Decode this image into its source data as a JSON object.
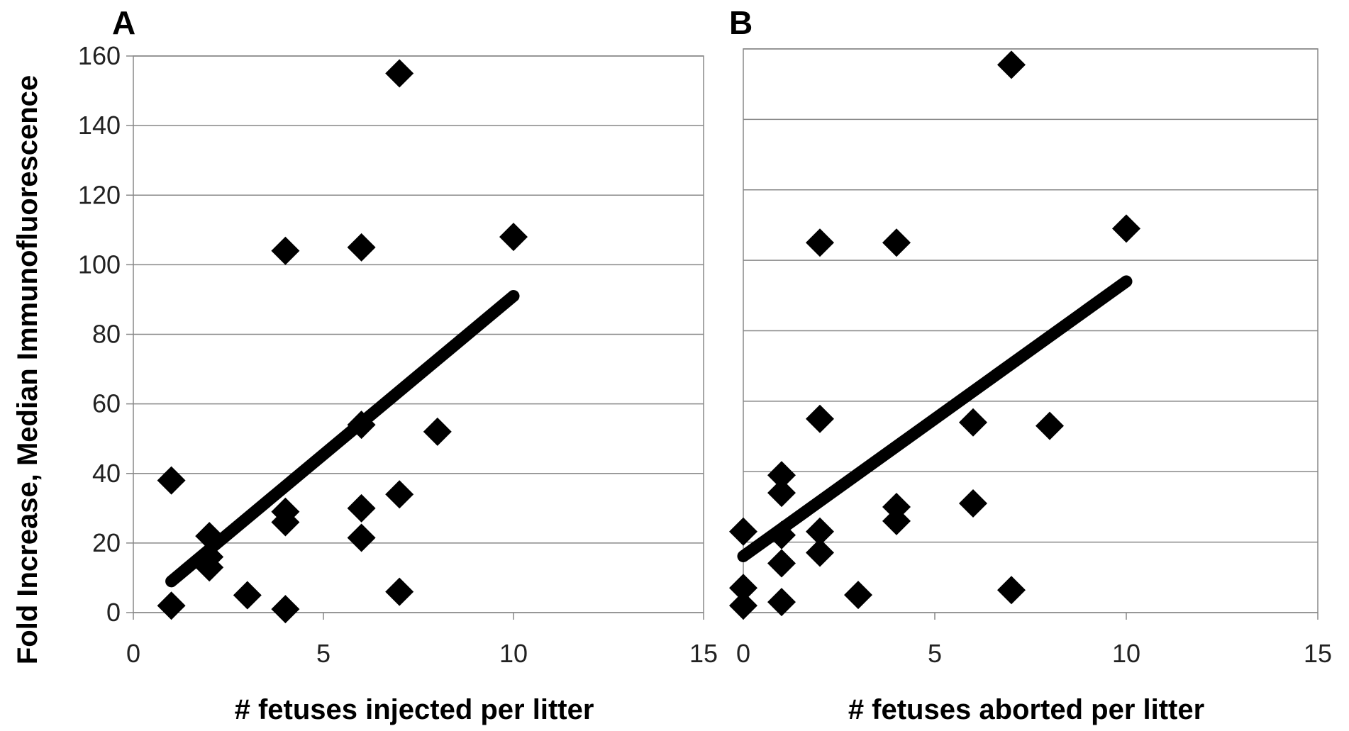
{
  "chart_data": [
    {
      "type": "scatter",
      "panel_label": "A",
      "x_label": "# fetuses injected per litter",
      "y_label": "Fold Increase, Median Immunofluorescence",
      "x": [
        1,
        1,
        2,
        2,
        2,
        3,
        4,
        4,
        4,
        4,
        6,
        6,
        6,
        6,
        7,
        7,
        7,
        8,
        10
      ],
      "values": [
        38,
        2,
        22,
        16,
        13,
        5,
        104,
        29,
        26,
        1,
        105,
        54,
        30,
        21.5,
        155,
        34,
        6,
        52,
        108
      ],
      "color": "#000000",
      "trendline": {
        "x": [
          1,
          10
        ],
        "y": [
          9,
          91
        ]
      },
      "xlim": [
        0,
        15
      ],
      "xticks": [
        0,
        5,
        10,
        15
      ],
      "ylim": [
        0,
        160
      ],
      "yticks": [
        0,
        20,
        40,
        60,
        80,
        100,
        120,
        140,
        160
      ],
      "ytick_labels": true,
      "grid": true
    },
    {
      "type": "scatter",
      "panel_label": "B",
      "x_label": "# fetuses aborted per litter",
      "x": [
        0,
        0,
        0,
        1,
        1,
        1,
        1,
        1,
        2,
        2,
        2,
        2,
        3,
        4,
        4,
        4,
        6,
        6,
        7,
        7,
        8,
        10
      ],
      "values": [
        23,
        7,
        2,
        39,
        34,
        22,
        14,
        3,
        105,
        55,
        23,
        17,
        5,
        105,
        30,
        26,
        54,
        31,
        155.5,
        6.4,
        53,
        109
      ],
      "color": "#000000",
      "trendline": {
        "x": [
          0,
          10
        ],
        "y": [
          16,
          94
        ]
      },
      "xlim": [
        0,
        15
      ],
      "xticks": [
        0,
        5,
        10,
        15
      ],
      "ylim": [
        0,
        160
      ],
      "yticks": [
        0,
        20,
        40,
        60,
        80,
        100,
        120,
        140,
        160
      ],
      "ytick_labels": false,
      "grid": true
    }
  ]
}
